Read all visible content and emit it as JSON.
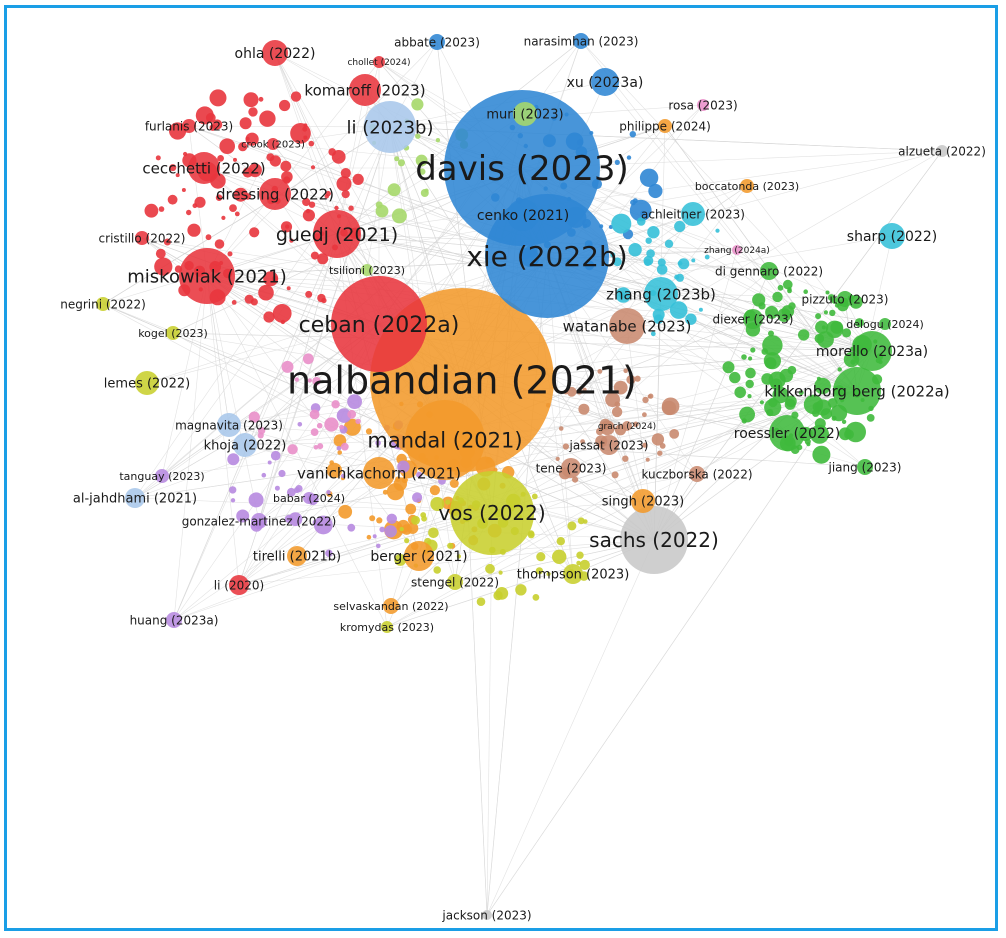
{
  "colors": {
    "frame": "#1a9ee6",
    "link": "#d6d6d6",
    "clusters": {
      "red": "#e8353d",
      "blue": "#2f86d4",
      "orange": "#f39a2b",
      "green": "#3fb93c",
      "yellow": "#c8cf2e",
      "cyan": "#35c0d8",
      "purple": "#b78ae0",
      "brown": "#c98a6f",
      "pink": "#e98fc9",
      "gray": "#c8c8c8",
      "lightblue": "#a9c7ea",
      "lightgreen": "#a6d86a"
    }
  },
  "nodes": [
    {
      "label": "nalbandian (2021)",
      "weight": 10,
      "cluster": "orange"
    },
    {
      "label": "davis (2023)",
      "weight": 8,
      "cluster": "blue"
    },
    {
      "label": "xie (2022b)",
      "weight": 6.5,
      "cluster": "blue"
    },
    {
      "label": "ceban (2022a)",
      "weight": 5,
      "cluster": "red"
    },
    {
      "label": "mandal (2021)",
      "weight": 4.5,
      "cluster": "orange"
    },
    {
      "label": "vos (2022)",
      "weight": 4.2,
      "cluster": "yellow"
    },
    {
      "label": "sachs (2022)",
      "weight": 4,
      "cluster": "gray"
    },
    {
      "label": "kikkenborg berg (2022a)",
      "weight": 3.2,
      "cluster": "green"
    },
    {
      "label": "guedj (2021)",
      "weight": 3.6,
      "cluster": "red"
    },
    {
      "label": "miskowiak (2021)",
      "weight": 3.5,
      "cluster": "red"
    },
    {
      "label": "li (2023b)",
      "weight": 3.3,
      "cluster": "lightblue"
    },
    {
      "label": "morello (2023a)",
      "weight": 2.8,
      "cluster": "green"
    },
    {
      "label": "roessler (2022)",
      "weight": 2.6,
      "cluster": "green"
    },
    {
      "label": "zhang (2023b)",
      "weight": 2.6,
      "cluster": "cyan"
    },
    {
      "label": "watanabe (2023)",
      "weight": 2.6,
      "cluster": "brown"
    },
    {
      "label": "cenko (2021)",
      "weight": 2.4,
      "cluster": "blue"
    },
    {
      "label": "komaroff (2023)",
      "weight": 2.4,
      "cluster": "red"
    },
    {
      "label": "cecchetti (2022)",
      "weight": 2.4,
      "cluster": "red"
    },
    {
      "label": "dressing (2022)",
      "weight": 2.4,
      "cluster": "red"
    },
    {
      "label": "vanichkachorn (2021)",
      "weight": 2.4,
      "cluster": "orange"
    },
    {
      "label": "sharp (2022)",
      "weight": 2.3,
      "cluster": "cyan"
    },
    {
      "label": "berger (2021)",
      "weight": 2.2,
      "cluster": "orange"
    },
    {
      "label": "xu (2023a)",
      "weight": 2.2,
      "cluster": "blue"
    },
    {
      "label": "ohla (2022)",
      "weight": 2.2,
      "cluster": "red"
    },
    {
      "label": "muri (2023)",
      "weight": 2,
      "cluster": "lightgreen"
    },
    {
      "label": "singh (2023)",
      "weight": 2,
      "cluster": "orange"
    },
    {
      "label": "achleitner (2023)",
      "weight": 2,
      "cluster": "cyan"
    },
    {
      "label": "lemes (2022)",
      "weight": 1.8,
      "cluster": "yellow"
    },
    {
      "label": "al-jahdhami (2021)",
      "weight": 1.8,
      "cluster": "lightblue"
    },
    {
      "label": "khoja (2022)",
      "weight": 1.8,
      "cluster": "lightblue"
    },
    {
      "label": "magnavita (2023)",
      "weight": 1.8,
      "cluster": "lightblue"
    },
    {
      "label": "tirelli (2021b)",
      "weight": 1.8,
      "cluster": "orange"
    },
    {
      "label": "thompson (2023)",
      "weight": 1.8,
      "cluster": "yellow"
    },
    {
      "label": "jassat (2023)",
      "weight": 1.8,
      "cluster": "brown"
    },
    {
      "label": "tene (2023)",
      "weight": 1.8,
      "cluster": "brown"
    },
    {
      "label": "diexer (2023)",
      "weight": 1.8,
      "cluster": "green"
    },
    {
      "label": "di gennaro (2022)",
      "weight": 1.6,
      "cluster": "green"
    },
    {
      "label": "pizzuto (2023)",
      "weight": 1.6,
      "cluster": "green"
    },
    {
      "label": "jiang (2023)",
      "weight": 1.6,
      "cluster": "green"
    },
    {
      "label": "kuczborska (2022)",
      "weight": 1.6,
      "cluster": "brown"
    },
    {
      "label": "gonzalez-martinez (2022)",
      "weight": 1.6,
      "cluster": "purple"
    },
    {
      "label": "stengel (2022)",
      "weight": 1.6,
      "cluster": "yellow"
    },
    {
      "label": "selvaskandan (2022)",
      "weight": 1.6,
      "cluster": "orange"
    },
    {
      "label": "kromydas (2023)",
      "weight": 1.4,
      "cluster": "yellow"
    },
    {
      "label": "li (2020)",
      "weight": 1.6,
      "cluster": "red"
    },
    {
      "label": "huang (2023a)",
      "weight": 1.6,
      "cluster": "purple"
    },
    {
      "label": "tanguay (2023)",
      "weight": 1.6,
      "cluster": "purple"
    },
    {
      "label": "negrini (2022)",
      "weight": 1.6,
      "cluster": "yellow"
    },
    {
      "label": "kogel (2023)",
      "weight": 1.6,
      "cluster": "yellow"
    },
    {
      "label": "cristillo (2022)",
      "weight": 1.6,
      "cluster": "red"
    },
    {
      "label": "furlanis (2023)",
      "weight": 1.6,
      "cluster": "red"
    },
    {
      "label": "crook (2023)",
      "weight": 1.4,
      "cluster": "red"
    },
    {
      "label": "chollet (2024)",
      "weight": 1.2,
      "cluster": "red"
    },
    {
      "label": "abbate (2023)",
      "weight": 1.6,
      "cluster": "blue"
    },
    {
      "label": "narasimhan (2023)",
      "weight": 1.6,
      "cluster": "blue"
    },
    {
      "label": "rosa (2023)",
      "weight": 1.6,
      "cluster": "pink"
    },
    {
      "label": "philippe (2024)",
      "weight": 1.6,
      "cluster": "orange"
    },
    {
      "label": "alzueta (2022)",
      "weight": 1.6,
      "cluster": "gray"
    },
    {
      "label": "boccatonda (2023)",
      "weight": 1.6,
      "cluster": "orange"
    },
    {
      "label": "zhang (2024a)",
      "weight": 1.2,
      "cluster": "pink"
    },
    {
      "label": "delogu (2024)",
      "weight": 1.4,
      "cluster": "green"
    },
    {
      "label": "tsilioni (2023)",
      "weight": 1.4,
      "cluster": "lightgreen"
    },
    {
      "label": "grach (2024)",
      "weight": 1.2,
      "cluster": "brown"
    },
    {
      "label": "babar (2024)",
      "weight": 1.4,
      "cluster": "purple"
    },
    {
      "label": "jackson (2023)",
      "weight": 1.6,
      "cluster": "gray"
    }
  ]
}
